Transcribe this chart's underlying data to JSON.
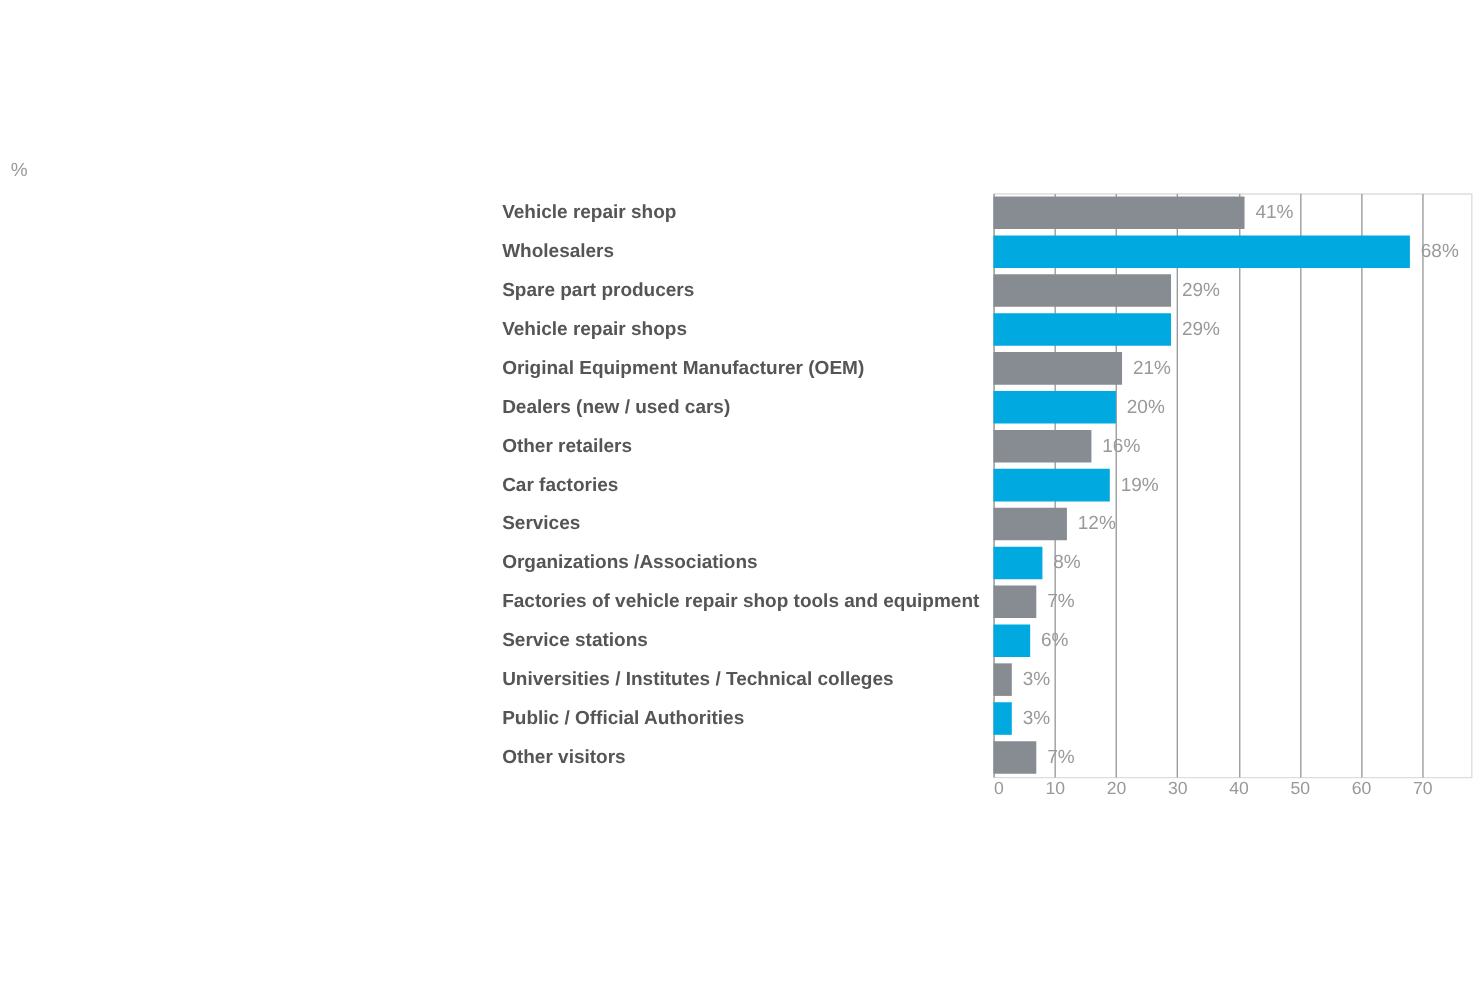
{
  "chart_data": {
    "type": "bar",
    "orientation": "horizontal",
    "title": "%",
    "categories": [
      "Vehicle repair shop",
      "Wholesalers",
      "Spare part producers",
      "Vehicle repair shops",
      "Original Equipment Manufacturer (OEM)",
      "Dealers (new / used cars)",
      "Other retailers",
      "Car factories",
      "Services",
      "Organizations /Associations",
      "Factories of vehicle repair shop tools and equipment",
      "Service stations",
      "Universities / Institutes / Technical colleges",
      "Public / Official Authorities",
      "Other visitors"
    ],
    "values": [
      41,
      68,
      29,
      29,
      21,
      20,
      16,
      19,
      12,
      8,
      7,
      6,
      3,
      3,
      7
    ],
    "colors": [
      "#878c93",
      "#00a9e0",
      "#878c93",
      "#00a9e0",
      "#878c93",
      "#00a9e0",
      "#878c93",
      "#00a9e0",
      "#878c93",
      "#00a9e0",
      "#878c93",
      "#00a9e0",
      "#878c93",
      "#00a9e0",
      "#878c93"
    ],
    "value_labels": [
      "41%",
      "68%",
      "29%",
      "29%",
      "21%",
      "20%",
      "16%",
      "19%",
      "12%",
      "8%",
      "7%",
      "6%",
      "3%",
      "3%",
      "7%"
    ],
    "xlim": [
      0,
      78
    ],
    "xticks": [
      0,
      10,
      20,
      30,
      40,
      50,
      60,
      70
    ],
    "grid": "x"
  }
}
